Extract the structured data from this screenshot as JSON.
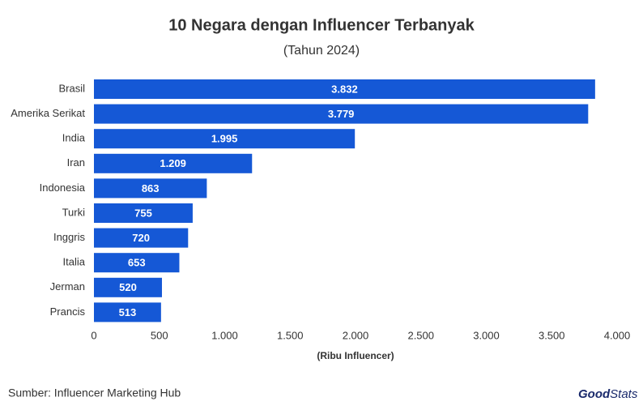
{
  "chart_data": {
    "type": "hbar",
    "title": "10 Negara dengan Influencer Terbanyak",
    "subtitle": "(Tahun 2024)",
    "x_label": "(Ribu Influencer)",
    "categories": [
      "Brasil",
      "Amerika Serikat",
      "India",
      "Iran",
      "Indonesia",
      "Turki",
      "Inggris",
      "Italia",
      "Jerman",
      "Prancis"
    ],
    "values": [
      3832,
      3779,
      1995,
      1209,
      863,
      755,
      720,
      653,
      520,
      513
    ],
    "value_labels": [
      "3.832",
      "3.779",
      "1.995",
      "1.209",
      "863",
      "755",
      "720",
      "653",
      "520",
      "513"
    ],
    "color": "#1558d6",
    "xlim": [
      0,
      4000
    ],
    "xticks": [
      0,
      500,
      {
        "value": 1000,
        "label": "1.000"
      },
      {
        "value": 1500,
        "label": "1.500"
      },
      {
        "value": 2000,
        "label": "2.000"
      },
      {
        "value": 2500,
        "label": "2.500"
      },
      {
        "value": 3000,
        "label": "3.000"
      },
      {
        "value": 3500,
        "label": "3.500"
      },
      {
        "value": 4000,
        "label": "4.000"
      }
    ],
    "grid": false,
    "source": "Sumber: Influencer Marketing Hub",
    "logo": {
      "first": "Good",
      "second": "Stats"
    }
  }
}
